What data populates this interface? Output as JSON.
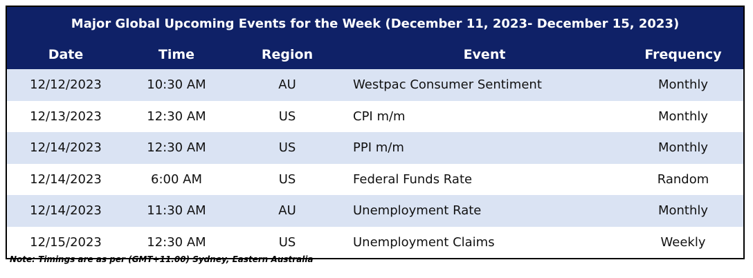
{
  "table": {
    "title": "Major Global Upcoming Events for the Week (December 11, 2023- December 15, 2023)",
    "columns": [
      "Date",
      "Time",
      "Region",
      "Event",
      "Frequency"
    ],
    "rows": [
      [
        "12/12/2023",
        "10:30 AM",
        "AU",
        "Westpac Consumer Sentiment",
        "Monthly"
      ],
      [
        "12/13/2023",
        "12:30 AM",
        "US",
        "CPI m/m",
        "Monthly"
      ],
      [
        "12/14/2023",
        "12:30 AM",
        "US",
        "PPI m/m",
        "Monthly"
      ],
      [
        "12/14/2023",
        "6:00 AM",
        "US",
        "Federal Funds Rate",
        "Random"
      ],
      [
        "12/14/2023",
        "11:30 AM",
        "AU",
        "Unemployment Rate",
        "Monthly"
      ],
      [
        "12/15/2023",
        "12:30 AM",
        "US",
        "Unemployment Claims",
        "Weekly"
      ]
    ]
  },
  "note": "Note: Timings are as per (GMT+11.00) Sydney, Eastern Australia"
}
